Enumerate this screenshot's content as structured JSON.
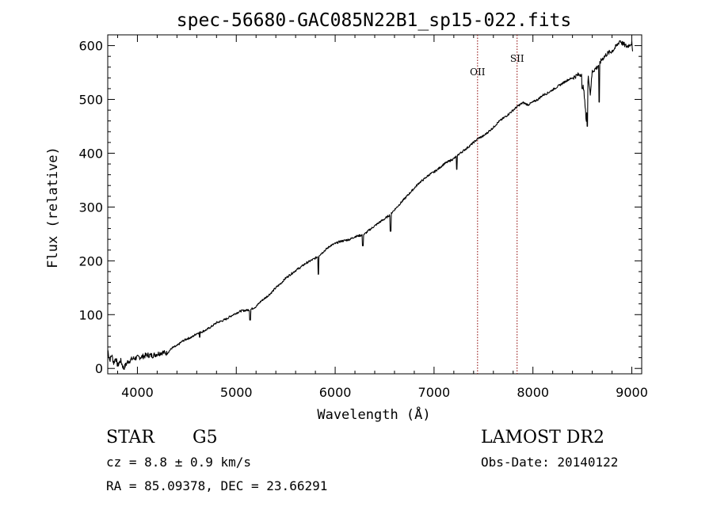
{
  "chart_data": {
    "type": "line",
    "title": "spec-56680-GAC085N22B1_sp15-022.fits",
    "xlabel": "Wavelength (Å)",
    "ylabel": "Flux (relative)",
    "xlim": [
      3700,
      9100
    ],
    "ylim": [
      -10,
      620
    ],
    "x_ticks": [
      4000,
      5000,
      6000,
      7000,
      8000,
      9000
    ],
    "y_ticks": [
      0,
      100,
      200,
      300,
      400,
      500,
      600
    ],
    "grid": false,
    "legend": "none",
    "line_color": "#000000",
    "marker_color": "#8b0000",
    "series": [
      {
        "x": [
          3700,
          3720,
          3740,
          3760,
          3780,
          3800,
          3830,
          3860,
          3900,
          3950,
          4000,
          4050,
          4100,
          4150,
          4200,
          4250,
          4300,
          4350,
          4400,
          4450,
          4500,
          4550,
          4600,
          4650,
          4700,
          4750,
          4800,
          4850,
          4900,
          4950,
          5000,
          5050,
          5100,
          5150,
          5200,
          5250,
          5300,
          5350,
          5400,
          5450,
          5500,
          5550,
          5600,
          5650,
          5700,
          5750,
          5800,
          5850,
          5900,
          5950,
          6000,
          6050,
          6100,
          6150,
          6200,
          6250,
          6300,
          6350,
          6400,
          6450,
          6500,
          6550,
          6600,
          6650,
          6700,
          6750,
          6800,
          6850,
          6900,
          6950,
          7000,
          7050,
          7100,
          7150,
          7200,
          7250,
          7300,
          7350,
          7400,
          7450,
          7500,
          7550,
          7600,
          7650,
          7700,
          7750,
          7800,
          7850,
          7900,
          7950,
          8000,
          8050,
          8100,
          8150,
          8200,
          8250,
          8300,
          8350,
          8400,
          8450,
          8500,
          8540,
          8560,
          8580,
          8600,
          8650,
          8700,
          8750,
          8800,
          8850,
          8880,
          8900,
          8950,
          9000,
          9010
        ],
        "y": [
          35,
          15,
          25,
          10,
          20,
          5,
          15,
          0,
          12,
          18,
          20,
          22,
          25,
          24,
          27,
          30,
          28,
          38,
          42,
          50,
          55,
          58,
          65,
          68,
          72,
          78,
          85,
          88,
          92,
          98,
          103,
          107,
          108,
          110,
          115,
          125,
          132,
          140,
          150,
          158,
          168,
          175,
          182,
          188,
          195,
          200,
          205,
          212,
          220,
          228,
          232,
          236,
          238,
          240,
          245,
          247,
          250,
          258,
          265,
          272,
          278,
          285,
          295,
          305,
          315,
          325,
          335,
          345,
          352,
          360,
          365,
          372,
          380,
          385,
          390,
          398,
          405,
          412,
          420,
          428,
          432,
          440,
          448,
          458,
          465,
          472,
          480,
          488,
          494,
          490,
          495,
          500,
          508,
          512,
          518,
          524,
          530,
          536,
          540,
          545,
          548,
          460,
          545,
          510,
          552,
          560,
          575,
          585,
          590,
          600,
          610,
          605,
          598,
          605,
          580
        ],
        "dips": [
          [
            4630,
            58
          ],
          [
            5140,
            90
          ],
          [
            5830,
            175
          ],
          [
            6280,
            228
          ],
          [
            6560,
            255
          ],
          [
            7230,
            370
          ],
          [
            8500,
            520
          ],
          [
            8550,
            450
          ],
          [
            8670,
            495
          ]
        ]
      }
    ],
    "line_markers": [
      {
        "label": "OII",
        "x": 7440
      },
      {
        "label": "SII",
        "x": 7840
      }
    ]
  },
  "info": {
    "object_class": "STAR",
    "subclass": "G5",
    "survey": "LAMOST DR2",
    "redshift": "cz =  8.8 ± 0.9 km/s",
    "obs_date": "Obs-Date: 20140122",
    "coords": "RA =  85.09378, DEC =  23.66291"
  }
}
